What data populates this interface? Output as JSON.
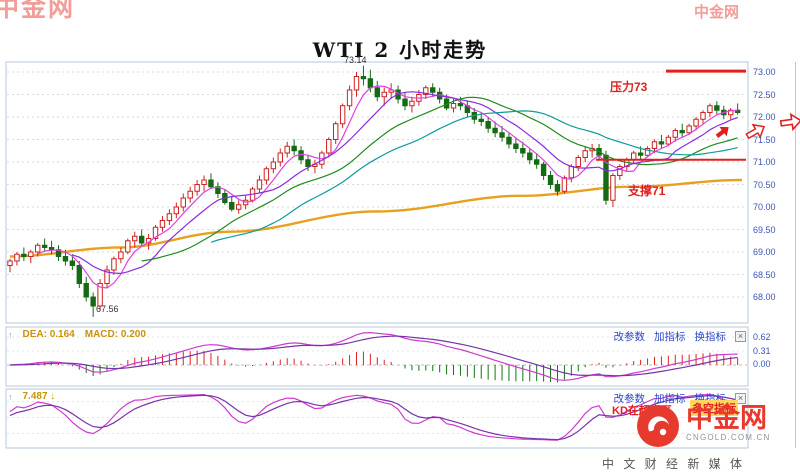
{
  "title": "WTI 2 小时走势",
  "watermark": {
    "text": "中金网"
  },
  "colors": {
    "accent_red": "#e8392f",
    "annotation_red": "#e02020",
    "link_blue": "#2a46c8",
    "axis_blue": "#3a55b4"
  },
  "price_axis": {
    "labels": [
      "73.00",
      "72.50",
      "72.00",
      "71.50",
      "71.00",
      "70.50",
      "70.00",
      "69.50",
      "69.00",
      "68.50",
      "68.00"
    ]
  },
  "annotations": {
    "resistance_label": "压力73",
    "support_label": "支撑71",
    "high_label": "73.14",
    "low_label": "67.56",
    "kd_note": "KD在超卖区",
    "kd_note_badge": "多空指标"
  },
  "macd_panel": {
    "dea_label": "DEA: 0.164",
    "macd_label": "MACD: 0.200",
    "links": [
      "改参数",
      "加指标",
      "换指标"
    ],
    "close_label": "×",
    "axis_labels": [
      "0.62",
      "0.31",
      "0.00"
    ]
  },
  "kd_panel": {
    "value_label": "7.487 ↓",
    "links": [
      "改参数",
      "加指标",
      "换指标"
    ],
    "close_label": "×"
  },
  "logo": {
    "name": "中金网",
    "domain": "CNGOLD.COM.CN",
    "slogan": "中 文 财 经 新 媒 体"
  },
  "chart_data": {
    "type": "candlestick",
    "title": "WTI 2 小时走势",
    "timeframe": "2小时",
    "ylim": [
      68.0,
      73.0
    ],
    "y_ticks": [
      73.0,
      72.5,
      72.0,
      71.5,
      71.0,
      70.5,
      70.0,
      69.5,
      69.0,
      68.5,
      68.0
    ],
    "period_high": 73.14,
    "period_low": 67.56,
    "resistance": 73.0,
    "support": 71.0,
    "up_color": "#cc2222",
    "down_color": "#156b15",
    "ma_periods": [
      5,
      10,
      20,
      30
    ],
    "ma_colors": [
      "#e040e0",
      "#8a2be2",
      "#1f8c1f",
      "#0f9b9b"
    ],
    "long_ma_color": "#e8a020",
    "long_ma_anchors": [
      [
        0,
        68.9
      ],
      [
        0.15,
        69.1
      ],
      [
        0.3,
        69.45
      ],
      [
        0.5,
        69.9
      ],
      [
        0.7,
        70.25
      ],
      [
        0.85,
        70.45
      ],
      [
        1,
        70.6
      ]
    ],
    "macd": {
      "dea": 0.164,
      "macd": 0.2,
      "axis_max": 0.62
    },
    "kd": {
      "last_value": 7.487
    },
    "candles": [
      [
        68.7,
        68.85,
        68.55,
        68.8
      ],
      [
        68.8,
        69.0,
        68.7,
        68.95
      ],
      [
        68.95,
        69.1,
        68.8,
        68.9
      ],
      [
        68.9,
        69.05,
        68.75,
        69.0
      ],
      [
        69.0,
        69.2,
        68.9,
        69.15
      ],
      [
        69.15,
        69.3,
        69.0,
        69.1
      ],
      [
        69.1,
        69.25,
        68.95,
        69.05
      ],
      [
        69.05,
        69.15,
        68.8,
        68.9
      ],
      [
        68.9,
        69.05,
        68.7,
        68.8
      ],
      [
        68.8,
        68.95,
        68.6,
        68.7
      ],
      [
        68.7,
        68.8,
        68.2,
        68.3
      ],
      [
        68.3,
        68.45,
        67.9,
        68.0
      ],
      [
        68.0,
        68.1,
        67.56,
        67.8
      ],
      [
        67.8,
        68.4,
        67.7,
        68.3
      ],
      [
        68.3,
        68.7,
        68.2,
        68.6
      ],
      [
        68.6,
        68.9,
        68.5,
        68.85
      ],
      [
        68.85,
        69.1,
        68.75,
        69.0
      ],
      [
        69.0,
        69.3,
        68.95,
        69.25
      ],
      [
        69.25,
        69.45,
        69.1,
        69.35
      ],
      [
        69.35,
        69.5,
        69.15,
        69.2
      ],
      [
        69.2,
        69.4,
        69.05,
        69.3
      ],
      [
        69.3,
        69.6,
        69.25,
        69.55
      ],
      [
        69.55,
        69.8,
        69.45,
        69.7
      ],
      [
        69.7,
        69.95,
        69.6,
        69.85
      ],
      [
        69.85,
        70.1,
        69.75,
        70.0
      ],
      [
        70.0,
        70.3,
        69.9,
        70.2
      ],
      [
        70.2,
        70.45,
        70.1,
        70.35
      ],
      [
        70.35,
        70.6,
        70.25,
        70.5
      ],
      [
        70.5,
        70.7,
        70.35,
        70.6
      ],
      [
        70.6,
        70.75,
        70.4,
        70.45
      ],
      [
        70.45,
        70.55,
        70.2,
        70.3
      ],
      [
        70.3,
        70.4,
        70.05,
        70.1
      ],
      [
        70.1,
        70.25,
        69.9,
        69.95
      ],
      [
        69.95,
        70.15,
        69.85,
        70.05
      ],
      [
        70.05,
        70.25,
        69.95,
        70.15
      ],
      [
        70.15,
        70.45,
        70.1,
        70.4
      ],
      [
        70.4,
        70.7,
        70.3,
        70.6
      ],
      [
        70.6,
        70.9,
        70.5,
        70.85
      ],
      [
        70.85,
        71.1,
        70.75,
        71.0
      ],
      [
        71.0,
        71.3,
        70.9,
        71.2
      ],
      [
        71.2,
        71.45,
        71.1,
        71.35
      ],
      [
        71.35,
        71.5,
        71.15,
        71.25
      ],
      [
        71.25,
        71.35,
        70.95,
        71.05
      ],
      [
        71.05,
        71.15,
        70.8,
        70.9
      ],
      [
        70.9,
        71.05,
        70.75,
        70.95
      ],
      [
        70.95,
        71.25,
        70.85,
        71.2
      ],
      [
        71.2,
        71.55,
        71.1,
        71.5
      ],
      [
        71.5,
        71.9,
        71.4,
        71.85
      ],
      [
        71.85,
        72.3,
        71.75,
        72.25
      ],
      [
        72.25,
        72.7,
        72.15,
        72.6
      ],
      [
        72.6,
        73.0,
        72.45,
        72.9
      ],
      [
        72.9,
        73.14,
        72.7,
        72.85
      ],
      [
        72.85,
        73.05,
        72.55,
        72.65
      ],
      [
        72.65,
        72.8,
        72.35,
        72.45
      ],
      [
        72.45,
        72.65,
        72.25,
        72.55
      ],
      [
        72.55,
        72.75,
        72.4,
        72.6
      ],
      [
        72.6,
        72.7,
        72.3,
        72.4
      ],
      [
        72.4,
        72.55,
        72.15,
        72.25
      ],
      [
        72.25,
        72.45,
        72.1,
        72.35
      ],
      [
        72.35,
        72.6,
        72.25,
        72.5
      ],
      [
        72.5,
        72.7,
        72.4,
        72.65
      ],
      [
        72.65,
        72.75,
        72.45,
        72.55
      ],
      [
        72.55,
        72.65,
        72.3,
        72.4
      ],
      [
        72.4,
        72.5,
        72.15,
        72.2
      ],
      [
        72.2,
        72.4,
        72.1,
        72.3
      ],
      [
        72.3,
        72.45,
        72.15,
        72.25
      ],
      [
        72.25,
        72.35,
        72.0,
        72.1
      ],
      [
        72.1,
        72.2,
        71.85,
        71.95
      ],
      [
        71.95,
        72.1,
        71.8,
        71.9
      ],
      [
        71.9,
        72.0,
        71.65,
        71.75
      ],
      [
        71.75,
        71.9,
        71.55,
        71.65
      ],
      [
        71.65,
        71.8,
        71.45,
        71.55
      ],
      [
        71.55,
        71.65,
        71.3,
        71.4
      ],
      [
        71.4,
        71.55,
        71.2,
        71.3
      ],
      [
        71.3,
        71.45,
        71.1,
        71.2
      ],
      [
        71.2,
        71.3,
        70.95,
        71.05
      ],
      [
        71.05,
        71.2,
        70.85,
        70.95
      ],
      [
        70.95,
        71.0,
        70.6,
        70.7
      ],
      [
        70.7,
        70.8,
        70.4,
        70.5
      ],
      [
        70.5,
        70.6,
        70.25,
        70.35
      ],
      [
        70.35,
        70.7,
        70.3,
        70.65
      ],
      [
        70.65,
        70.95,
        70.55,
        70.9
      ],
      [
        70.9,
        71.15,
        70.8,
        71.1
      ],
      [
        71.1,
        71.35,
        71.0,
        71.25
      ],
      [
        71.25,
        71.4,
        71.1,
        71.3
      ],
      [
        71.3,
        71.4,
        71.05,
        71.15
      ],
      [
        71.15,
        71.25,
        70.05,
        70.15
      ],
      [
        70.15,
        70.75,
        70.0,
        70.7
      ],
      [
        70.7,
        70.95,
        70.6,
        70.9
      ],
      [
        70.9,
        71.1,
        70.8,
        71.05
      ],
      [
        71.05,
        71.25,
        70.95,
        71.2
      ],
      [
        71.2,
        71.35,
        71.05,
        71.15
      ],
      [
        71.15,
        71.35,
        71.1,
        71.3
      ],
      [
        71.3,
        71.5,
        71.2,
        71.45
      ],
      [
        71.45,
        71.6,
        71.3,
        71.4
      ],
      [
        71.4,
        71.6,
        71.35,
        71.55
      ],
      [
        71.55,
        71.75,
        71.45,
        71.7
      ],
      [
        71.7,
        71.85,
        71.55,
        71.65
      ],
      [
        71.65,
        71.85,
        71.6,
        71.8
      ],
      [
        71.8,
        72.0,
        71.7,
        71.95
      ],
      [
        71.95,
        72.15,
        71.85,
        72.1
      ],
      [
        72.1,
        72.3,
        72.0,
        72.25
      ],
      [
        72.25,
        72.35,
        72.05,
        72.15
      ],
      [
        72.15,
        72.25,
        71.95,
        72.05
      ],
      [
        72.05,
        72.2,
        71.95,
        72.15
      ],
      [
        72.15,
        72.3,
        72.05,
        72.1
      ]
    ]
  }
}
